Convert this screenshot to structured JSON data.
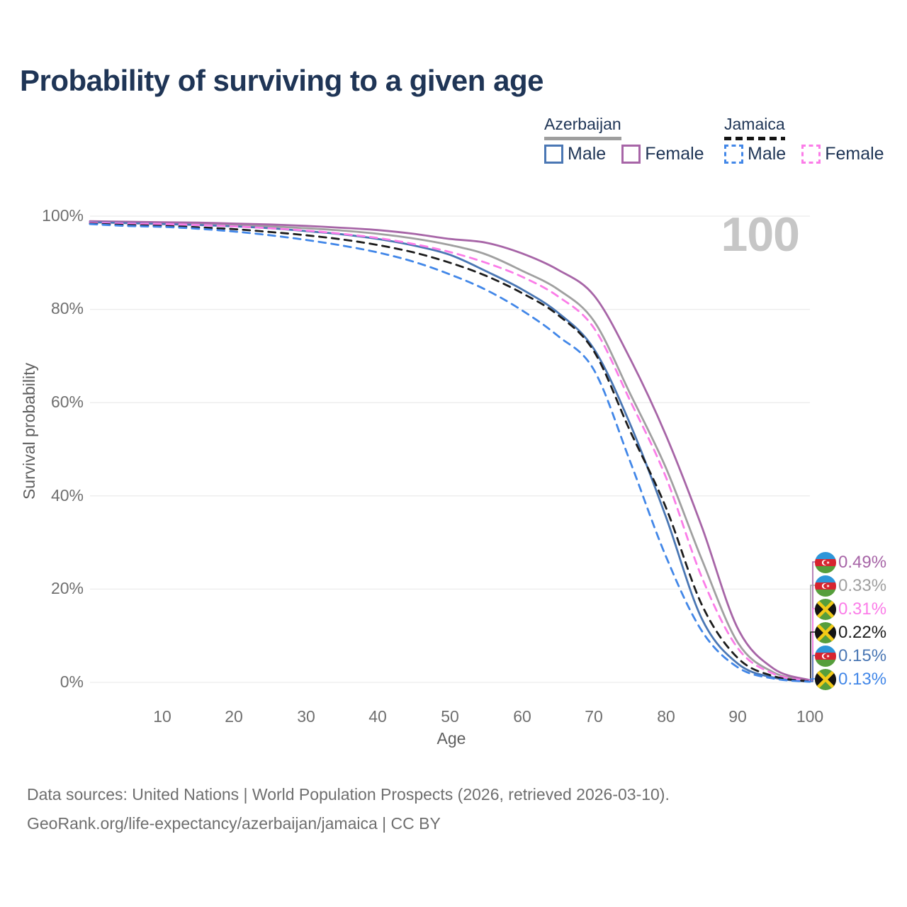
{
  "title": "Probability of surviving to a given age",
  "watermark": "100",
  "legend": {
    "groups": [
      {
        "country": "Azerbaijan",
        "line_style": "solid",
        "underline_color": "#9e9e9e",
        "items": [
          {
            "label": "Male",
            "color": "#4a77b4"
          },
          {
            "label": "Female",
            "color": "#a765a7"
          }
        ]
      },
      {
        "country": "Jamaica",
        "line_style": "dashed",
        "underline_color": "#141414",
        "items": [
          {
            "label": "Male",
            "color": "#4287e8"
          },
          {
            "label": "Female",
            "color": "#fb7ce8"
          }
        ]
      }
    ]
  },
  "y_axis": {
    "label": "Survival probability",
    "ticks": [
      "100%",
      "80%",
      "60%",
      "40%",
      "20%",
      "0%"
    ]
  },
  "x_axis": {
    "label": "Age",
    "ticks": [
      "10",
      "20",
      "30",
      "40",
      "50",
      "60",
      "70",
      "80",
      "90",
      "100"
    ]
  },
  "end_labels": [
    {
      "flag": "azerbaijan-flag-icon",
      "value": "0.49%",
      "color": "#a765a7"
    },
    {
      "flag": "azerbaijan-flag-icon",
      "value": "0.33%",
      "color": "#a0a0a0"
    },
    {
      "flag": "jamaica-flag-icon",
      "value": "0.31%",
      "color": "#fb7ce8"
    },
    {
      "flag": "jamaica-flag-icon",
      "value": "0.22%",
      "color": "#1c1c1c"
    },
    {
      "flag": "azerbaijan-flag-icon",
      "value": "0.15%",
      "color": "#4a77b4"
    },
    {
      "flag": "jamaica-flag-icon",
      "value": "0.13%",
      "color": "#4287e8"
    }
  ],
  "footer": {
    "line1": "Data sources: United Nations | World Population Prospects (2026, retrieved 2026-03-10).",
    "line2": "GeoRank.org/life-expectancy/azerbaijan/jamaica | CC BY"
  },
  "chart_data": {
    "type": "line",
    "title": "Probability of surviving to a given age",
    "xlabel": "Age",
    "ylabel": "Survival probability",
    "xlim": [
      0,
      100
    ],
    "ylim": [
      0,
      100
    ],
    "grid": "horizontal",
    "legend_position": "top-right",
    "x": [
      0,
      5,
      10,
      15,
      20,
      25,
      30,
      35,
      40,
      45,
      50,
      55,
      60,
      65,
      70,
      75,
      80,
      85,
      90,
      95,
      100
    ],
    "x_ticks": [
      10,
      20,
      30,
      40,
      50,
      60,
      70,
      80,
      90,
      100
    ],
    "y_ticks": [
      0,
      20,
      40,
      60,
      80,
      100
    ],
    "y_tick_suffix": "%",
    "series": [
      {
        "name": "Azerbaijan Female",
        "color": "#a765a7",
        "dash": false,
        "end_label": "0.49%",
        "values": [
          98.9,
          98.8,
          98.7,
          98.6,
          98.4,
          98.2,
          97.9,
          97.5,
          97.0,
          96.2,
          95.1,
          94.3,
          92.0,
          88.5,
          83.0,
          69.5,
          53.0,
          33.3,
          11.5,
          2.9,
          0.49
        ]
      },
      {
        "name": "Azerbaijan (both sexes)",
        "color": "#a0a0a0",
        "dash": false,
        "end_label": "0.33%",
        "values": [
          98.8,
          98.6,
          98.5,
          98.3,
          98.1,
          97.8,
          97.4,
          96.9,
          96.2,
          95.2,
          93.8,
          91.8,
          88.3,
          84.3,
          77.5,
          62.0,
          46.0,
          26.3,
          8.5,
          2.1,
          0.33
        ]
      },
      {
        "name": "Jamaica Female",
        "color": "#fb7ce8",
        "dash": true,
        "end_label": "0.31%",
        "values": [
          98.6,
          98.4,
          98.3,
          98.1,
          97.8,
          97.4,
          96.9,
          96.2,
          95.3,
          94.0,
          92.3,
          90.0,
          87.0,
          82.8,
          76.0,
          60.5,
          44.0,
          22.5,
          7.3,
          1.8,
          0.31
        ]
      },
      {
        "name": "Jamaica (both sexes)",
        "color": "#1c1c1c",
        "dash": true,
        "end_label": "0.22%",
        "values": [
          98.4,
          98.1,
          97.9,
          97.6,
          97.2,
          96.6,
          95.9,
          95.0,
          93.8,
          92.2,
          90.0,
          87.2,
          83.5,
          78.8,
          71.0,
          54.0,
          37.5,
          16.6,
          5.2,
          1.3,
          0.22
        ]
      },
      {
        "name": "Azerbaijan Male",
        "color": "#4a77b4",
        "dash": false,
        "end_label": "0.15%",
        "values": [
          98.7,
          98.5,
          98.3,
          98.1,
          97.8,
          97.4,
          96.8,
          96.1,
          95.1,
          93.7,
          91.7,
          88.2,
          84.3,
          79.3,
          71.5,
          55.5,
          35.5,
          13.6,
          4.0,
          1.0,
          0.15
        ]
      },
      {
        "name": "Jamaica Male",
        "color": "#4287e8",
        "dash": true,
        "end_label": "0.13%",
        "values": [
          98.3,
          97.9,
          97.7,
          97.3,
          96.7,
          95.9,
          94.9,
          93.7,
          92.2,
          90.2,
          87.5,
          84.2,
          79.8,
          74.3,
          67.0,
          47.5,
          27.0,
          11.0,
          3.2,
          0.8,
          0.13
        ]
      }
    ]
  }
}
